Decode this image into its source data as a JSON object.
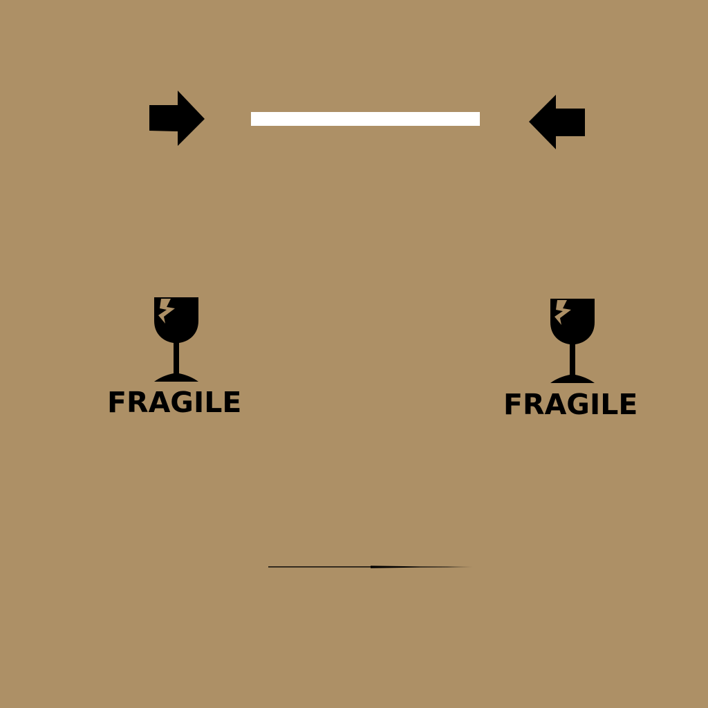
{
  "background": {
    "color": "#ad9066"
  },
  "label_strip": {
    "color": "#ffffff"
  },
  "arrows": {
    "left": {
      "icon": "arrow-right-icon"
    },
    "right": {
      "icon": "arrow-left-icon"
    }
  },
  "fragile_marks": [
    {
      "icon": "broken-glass-icon",
      "text": "FRAGILE"
    },
    {
      "icon": "broken-glass-icon",
      "text": "FRAGILE"
    }
  ],
  "seam": {
    "icon": "seam-line"
  }
}
